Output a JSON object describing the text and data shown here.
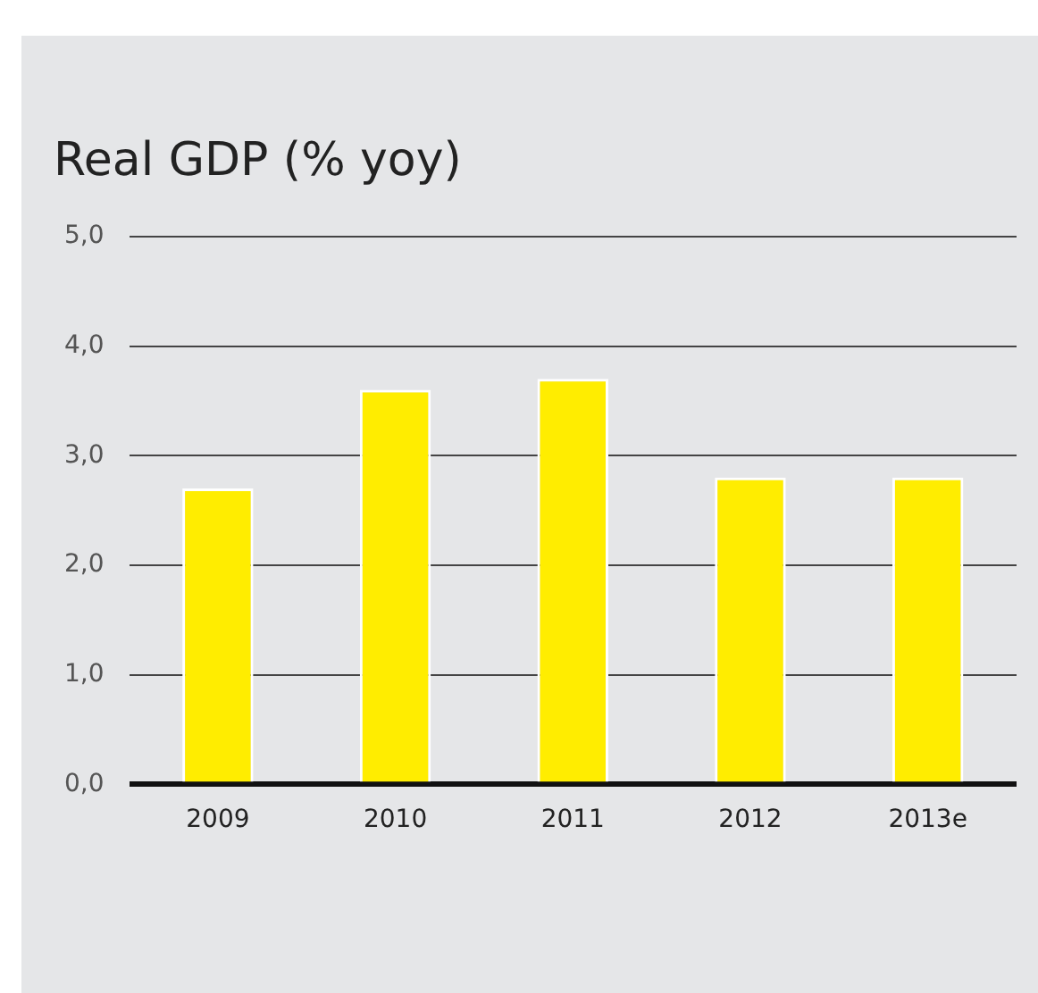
{
  "chart_data": {
    "type": "bar",
    "title": "Real GDP (% yoy)",
    "categories": [
      "2009",
      "2010",
      "2011",
      "2012",
      "2013e"
    ],
    "values": [
      2.7,
      3.6,
      3.7,
      2.8,
      2.8
    ],
    "color": "#ffed00",
    "ylim": [
      0,
      5
    ],
    "yticks": [
      {
        "value": 0,
        "label": "0,0"
      },
      {
        "value": 1,
        "label": "1,0"
      },
      {
        "value": 2,
        "label": "2,0"
      },
      {
        "value": 3,
        "label": "3,0"
      },
      {
        "value": 4,
        "label": "4,0"
      },
      {
        "value": 5,
        "label": "5,0"
      }
    ],
    "grid": "y",
    "legend": false
  }
}
